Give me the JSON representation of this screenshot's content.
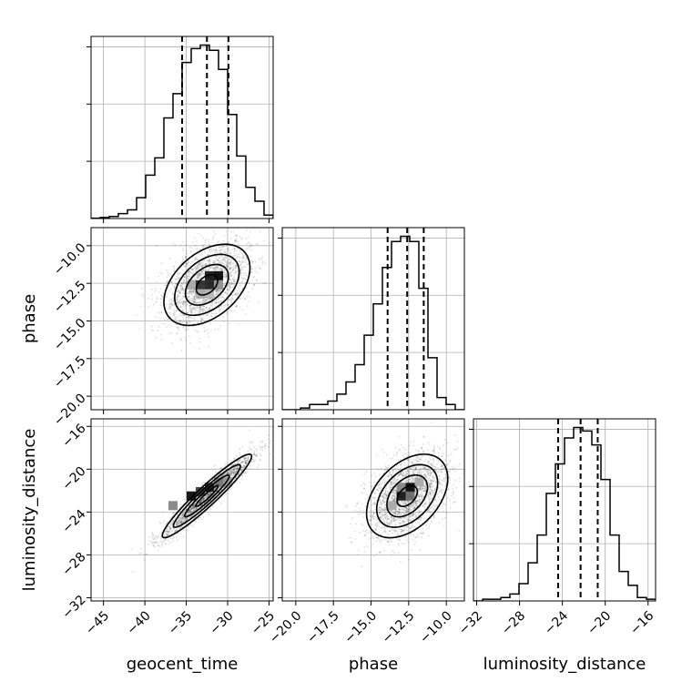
{
  "chart_data": {
    "type": "corner",
    "parameters": [
      "geocent_time",
      "phase",
      "luminosity_distance"
    ],
    "axis_labels": {
      "geocent_time": "geocent_time",
      "phase": "phase",
      "luminosity_distance": "luminosity_distance"
    },
    "ranges": {
      "geocent_time": [
        -46.5,
        -24.5
      ],
      "phase": [
        -20.9,
        -8.8
      ],
      "luminosity_distance": [
        -32.3,
        -15.3
      ]
    },
    "ticks": {
      "geocent_time": [
        -45,
        -40,
        -35,
        -30,
        -25
      ],
      "phase": [
        -20.0,
        -17.5,
        -15.0,
        -12.5,
        -10.0
      ],
      "luminosity_distance": [
        -32,
        -28,
        -24,
        -20,
        -16
      ]
    },
    "tick_labels": {
      "geocent_time": [
        "−45",
        "−40",
        "−35",
        "−30",
        "−25"
      ],
      "phase": [
        "−20.0",
        "−17.5",
        "−15.0",
        "−12.5",
        "−10.0"
      ],
      "luminosity_distance": [
        "−32",
        "−28",
        "−24",
        "−20",
        "−16"
      ]
    },
    "grid": true,
    "marginals": {
      "geocent_time": {
        "bin_edges": [
          -46.5,
          -45.4,
          -44.3,
          -43.2,
          -42.1,
          -41.0,
          -39.9,
          -38.8,
          -37.7,
          -36.6,
          -35.5,
          -34.4,
          -33.3,
          -32.2,
          -31.1,
          -30.0,
          -28.9,
          -27.8,
          -26.7,
          -25.6,
          -24.5
        ],
        "counts": [
          0.002,
          0.006,
          0.012,
          0.028,
          0.05,
          0.12,
          0.25,
          0.35,
          0.58,
          0.72,
          0.9,
          0.98,
          1.0,
          0.97,
          0.86,
          0.6,
          0.36,
          0.18,
          0.1,
          0.02
        ],
        "quantiles": [
          -35.5,
          -32.5,
          -29.9
        ]
      },
      "phase": {
        "bin_edges": [
          -20.9,
          -20.295,
          -19.69,
          -19.085,
          -18.48,
          -17.875,
          -17.27,
          -16.665,
          -16.06,
          -15.455,
          -14.85,
          -14.245,
          -13.64,
          -13.035,
          -12.43,
          -11.825,
          -11.22,
          -10.615,
          -10.01,
          -9.405,
          -8.8
        ],
        "counts": [
          0.0,
          0.0,
          0.01,
          0.03,
          0.03,
          0.05,
          0.09,
          0.16,
          0.26,
          0.43,
          0.61,
          0.82,
          0.97,
          1.0,
          0.97,
          0.7,
          0.3,
          0.07,
          0.03,
          0.0
        ],
        "quantiles": [
          -13.9,
          -12.6,
          -11.5
        ]
      },
      "luminosity_distance": {
        "bin_edges": [
          -32.3,
          -31.45,
          -30.6,
          -29.75,
          -28.9,
          -28.05,
          -27.2,
          -26.35,
          -25.5,
          -24.65,
          -23.8,
          -22.95,
          -22.1,
          -21.25,
          -20.4,
          -19.55,
          -18.7,
          -17.85,
          -17.0,
          -16.15,
          -15.3
        ],
        "counts": [
          0.0,
          0.01,
          0.01,
          0.02,
          0.04,
          0.1,
          0.22,
          0.38,
          0.62,
          0.79,
          0.94,
          1.0,
          0.98,
          0.9,
          0.7,
          0.38,
          0.17,
          0.09,
          0.02,
          0.01
        ],
        "quantiles": [
          -24.4,
          -22.3,
          -20.7
        ]
      }
    },
    "pairs": [
      {
        "x": "geocent_time",
        "y": "phase",
        "mean": [
          -32.5,
          -12.6
        ],
        "std": [
          2.6,
          1.35
        ],
        "corr": 0.42,
        "dense_bins": [
          {
            "x": -32.2,
            "y": -12.0,
            "level": 0.95
          },
          {
            "x": -31.1,
            "y": -12.0,
            "level": 1.0
          },
          {
            "x": -33.3,
            "y": -12.6,
            "level": 0.85
          },
          {
            "x": -32.2,
            "y": -12.6,
            "level": 0.9
          },
          {
            "x": -34.4,
            "y": -12.6,
            "level": 0.35
          },
          {
            "x": -31.1,
            "y": -12.6,
            "level": 0.45
          },
          {
            "x": -33.3,
            "y": -13.2,
            "level": 0.35
          },
          {
            "x": -32.2,
            "y": -13.2,
            "level": 0.3
          }
        ]
      },
      {
        "x": "geocent_time",
        "y": "luminosity_distance",
        "mean": [
          -32.5,
          -22.5
        ],
        "std": [
          2.7,
          1.95
        ],
        "corr": 0.95,
        "dense_bins": [
          {
            "x": -34.4,
            "y": -22.5,
            "level": 1.0
          },
          {
            "x": -33.3,
            "y": -22.1,
            "level": 0.8
          },
          {
            "x": -32.2,
            "y": -21.7,
            "level": 0.9
          },
          {
            "x": -31.1,
            "y": -21.2,
            "level": 0.55
          },
          {
            "x": -36.6,
            "y": -23.4,
            "level": 0.5
          },
          {
            "x": -30.0,
            "y": -21.2,
            "level": 0.4
          }
        ]
      },
      {
        "x": "phase",
        "y": "luminosity_distance",
        "mean": [
          -12.6,
          -22.5
        ],
        "std": [
          1.35,
          1.95
        ],
        "corr": 0.42,
        "dense_bins": [
          {
            "x": -12.4,
            "y": -21.7,
            "level": 1.0
          },
          {
            "x": -13.0,
            "y": -22.5,
            "level": 0.95
          },
          {
            "x": -12.4,
            "y": -22.5,
            "level": 0.6
          },
          {
            "x": -13.0,
            "y": -21.7,
            "level": 0.5
          },
          {
            "x": -13.6,
            "y": -23.4,
            "level": 0.35
          },
          {
            "x": -11.8,
            "y": -21.2,
            "level": 0.35
          }
        ]
      }
    ],
    "contour_levels": [
      0.5,
      1.0,
      1.5,
      2.0
    ]
  }
}
